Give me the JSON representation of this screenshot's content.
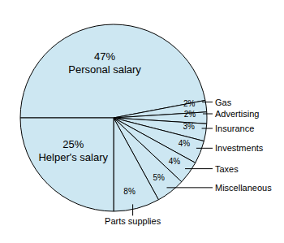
{
  "chart_data": {
    "type": "pie",
    "categories": [
      "Personal salary",
      "Gas",
      "Advertising",
      "Insurance",
      "Investments",
      "Taxes",
      "Miscellaneous",
      "Parts supplies",
      "Helper's salary"
    ],
    "values": [
      47,
      2,
      2,
      3,
      4,
      4,
      5,
      8,
      25
    ],
    "value_labels": [
      "47%",
      "2%",
      "2%",
      "3%",
      "4%",
      "4%",
      "5%",
      "8%",
      "25%"
    ],
    "color": "#cde7f2",
    "data_labels": true
  }
}
